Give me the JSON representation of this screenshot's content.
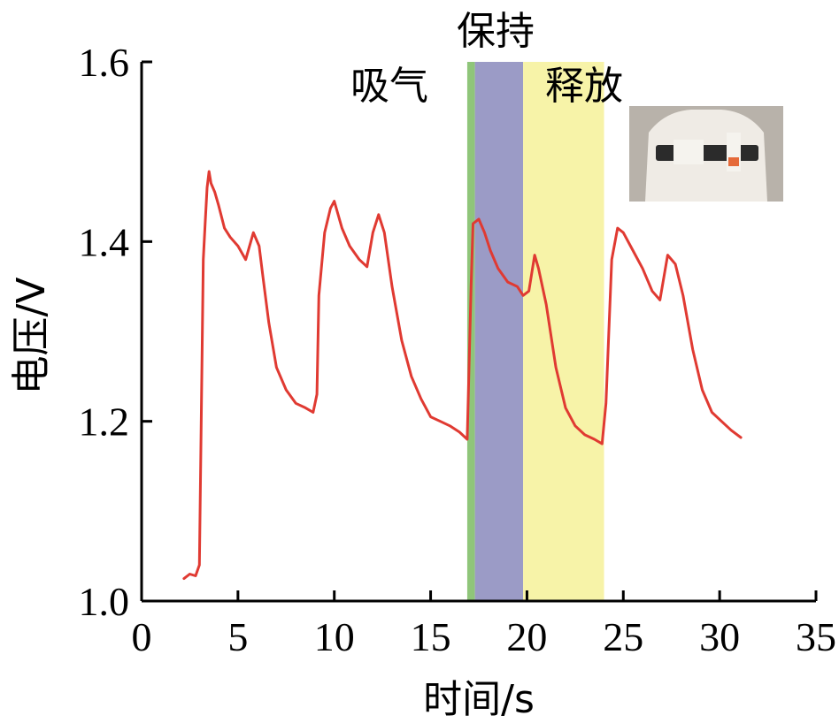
{
  "chart_data": {
    "type": "line",
    "xlabel": "时间/s",
    "ylabel": "电压/V",
    "xlim": [
      0,
      35
    ],
    "ylim": [
      1.0,
      1.6
    ],
    "x_ticks": [
      0,
      5,
      10,
      15,
      20,
      25,
      30,
      35
    ],
    "y_ticks": [
      1.0,
      1.2,
      1.4,
      1.6
    ],
    "x_tick_labels": [
      "0",
      "5",
      "10",
      "15",
      "20",
      "25",
      "30",
      "35"
    ],
    "y_tick_labels": [
      "1.0",
      "1.2",
      "1.4",
      "1.6"
    ],
    "grid": false,
    "phases": [
      {
        "label": "吸气",
        "x_start": 16.9,
        "x_end": 17.3,
        "color": "#8fc57a"
      },
      {
        "label": "保持",
        "x_start": 17.3,
        "x_end": 19.8,
        "color": "#9b9bc6"
      },
      {
        "label": "释放",
        "x_start": 19.8,
        "x_end": 24.0,
        "color": "#f7f3a8"
      }
    ],
    "series": [
      {
        "color": "#e03a32",
        "x": [
          2.2,
          2.5,
          2.8,
          3.0,
          3.2,
          3.3,
          3.4,
          3.5,
          3.6,
          3.8,
          4.0,
          4.3,
          4.6,
          5.0,
          5.4,
          5.8,
          6.1,
          6.3,
          6.6,
          7.0,
          7.5,
          8.0,
          8.5,
          8.9,
          9.1,
          9.2,
          9.5,
          9.8,
          10.0,
          10.4,
          10.8,
          11.3,
          11.7,
          12.0,
          12.3,
          12.6,
          13.0,
          13.5,
          14.0,
          14.5,
          15.0,
          15.5,
          16.0,
          16.5,
          16.9,
          17.1,
          17.2,
          17.5,
          17.8,
          18.1,
          18.5,
          19.0,
          19.5,
          19.8,
          20.1,
          20.4,
          20.6,
          21.0,
          21.5,
          22.0,
          22.5,
          23.0,
          23.5,
          23.9,
          24.1,
          24.4,
          24.7,
          25.0,
          25.5,
          26.0,
          26.5,
          26.9,
          27.3,
          27.7,
          28.1,
          28.6,
          29.1,
          29.6,
          30.1,
          30.6,
          31.1
        ],
        "y": [
          1.025,
          1.03,
          1.028,
          1.04,
          1.38,
          1.42,
          1.46,
          1.478,
          1.465,
          1.455,
          1.44,
          1.415,
          1.405,
          1.395,
          1.38,
          1.41,
          1.395,
          1.36,
          1.31,
          1.26,
          1.235,
          1.22,
          1.215,
          1.21,
          1.23,
          1.34,
          1.41,
          1.437,
          1.445,
          1.415,
          1.395,
          1.38,
          1.372,
          1.41,
          1.43,
          1.41,
          1.35,
          1.29,
          1.25,
          1.225,
          1.205,
          1.2,
          1.195,
          1.188,
          1.18,
          1.35,
          1.42,
          1.425,
          1.41,
          1.39,
          1.37,
          1.355,
          1.35,
          1.34,
          1.345,
          1.385,
          1.37,
          1.33,
          1.26,
          1.215,
          1.195,
          1.185,
          1.18,
          1.175,
          1.22,
          1.38,
          1.415,
          1.41,
          1.39,
          1.37,
          1.345,
          1.335,
          1.385,
          1.375,
          1.34,
          1.28,
          1.235,
          1.21,
          1.2,
          1.19,
          1.182
        ]
      }
    ]
  },
  "inset": {
    "colors": {
      "background": "#b8b2aa",
      "sweater": "#efebe5",
      "strap": "#2b2b2b",
      "sensor": "#f5f3ee",
      "accent": "#e56a3a"
    }
  }
}
